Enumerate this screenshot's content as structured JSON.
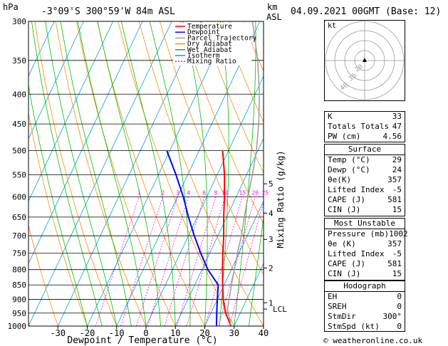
{
  "header": {
    "unit_left": "hPa",
    "location": "-3°09'S 300°59'W 84m ASL",
    "unit_km": "km",
    "unit_asl": "ASL",
    "datetime": "04.09.2021 00GMT (Base: 12)"
  },
  "chart_data": {
    "type": "line",
    "xlabel": "Dewpoint / Temperature (°C)",
    "ylabel": "Mixing Ratio (g/kg)",
    "x_ticks": [
      -30,
      -20,
      -10,
      0,
      10,
      20,
      30,
      40
    ],
    "y_ticks": [
      1000,
      950,
      900,
      850,
      800,
      750,
      700,
      650,
      600,
      550,
      500,
      450,
      400,
      350,
      300
    ],
    "y_tick_labels": [
      "1000",
      "950",
      "900",
      "850",
      "800",
      "750",
      "700",
      "650",
      "600",
      "550",
      "500",
      "450",
      "400",
      "350",
      "300"
    ],
    "xlim": [
      -40,
      40
    ],
    "ylim": [
      1000,
      300
    ],
    "km_ticks": [
      {
        "p": 912,
        "label": "1"
      },
      {
        "p": 795,
        "label": "2"
      },
      {
        "p": 710,
        "label": "3"
      },
      {
        "p": 640,
        "label": "4"
      },
      {
        "p": 570,
        "label": "5"
      }
    ],
    "lcl": {
      "p": 935,
      "label": "LCL"
    },
    "mixing_ratio_labels": [
      "1",
      "2",
      "3",
      "4",
      "6",
      "8",
      "10",
      "15",
      "20",
      "25"
    ],
    "legend": [
      {
        "name": "Temperature",
        "color": "#ff0000"
      },
      {
        "name": "Dewpoint",
        "color": "#0000ff"
      },
      {
        "name": "Parcel Trajectory",
        "color": "#a0a0a0"
      },
      {
        "name": "Dry Adiabat",
        "color": "#ff8c00"
      },
      {
        "name": "Wet Adiabat",
        "color": "#00c000"
      },
      {
        "name": "Isotherm",
        "color": "#00a0e0"
      },
      {
        "name": "Mixing Ratio",
        "color": "#ff00ff"
      }
    ],
    "series": [
      {
        "name": "Temperature",
        "color": "#ff0000",
        "points": [
          [
            1000,
            29
          ],
          [
            950,
            25
          ],
          [
            900,
            22
          ],
          [
            850,
            19.5
          ],
          [
            800,
            17
          ],
          [
            750,
            14.5
          ],
          [
            700,
            12
          ],
          [
            650,
            9
          ],
          [
            600,
            6
          ],
          [
            550,
            2.5
          ],
          [
            500,
            -2
          ]
        ]
      },
      {
        "name": "Dewpoint",
        "color": "#0000ff",
        "points": [
          [
            1000,
            24
          ],
          [
            950,
            22
          ],
          [
            900,
            20
          ],
          [
            850,
            18
          ],
          [
            800,
            12
          ],
          [
            750,
            7
          ],
          [
            700,
            2
          ],
          [
            650,
            -3
          ],
          [
            600,
            -8
          ],
          [
            550,
            -14
          ],
          [
            500,
            -21
          ]
        ]
      },
      {
        "name": "Parcel Trajectory",
        "color": "#a0a0a0",
        "points": [
          [
            1000,
            29
          ],
          [
            935,
            25
          ],
          [
            850,
            22.5
          ],
          [
            800,
            21
          ],
          [
            750,
            19.5
          ],
          [
            700,
            18
          ],
          [
            650,
            16
          ],
          [
            600,
            14
          ],
          [
            550,
            12
          ],
          [
            500,
            9.5
          ],
          [
            450,
            6
          ],
          [
            400,
            1.5
          ],
          [
            350,
            -4.5
          ],
          [
            300,
            -12.5
          ]
        ]
      }
    ]
  },
  "hodograph": {
    "label": "kt",
    "ring_labels": [
      "20",
      "30",
      "40"
    ]
  },
  "indices": [
    {
      "label": "K",
      "value": "33"
    },
    {
      "label": "Totals Totals",
      "value": "47"
    },
    {
      "label": "PW (cm)",
      "value": "4.56"
    }
  ],
  "surface": {
    "title": "Surface",
    "rows": [
      {
        "label": "Temp (°C)",
        "value": "29"
      },
      {
        "label": "Dewp (°C)",
        "value": "24"
      },
      {
        "label": "θe(K)",
        "value": "357"
      },
      {
        "label": "Lifted Index",
        "value": "-5"
      },
      {
        "label": "CAPE (J)",
        "value": "581"
      },
      {
        "label": "CIN (J)",
        "value": "15"
      }
    ]
  },
  "most_unstable": {
    "title": "Most Unstable",
    "rows": [
      {
        "label": "Pressure (mb)",
        "value": "1002"
      },
      {
        "label": "θe (K)",
        "value": "357"
      },
      {
        "label": "Lifted Index",
        "value": "-5"
      },
      {
        "label": "CAPE (J)",
        "value": "581"
      },
      {
        "label": "CIN (J)",
        "value": "15"
      }
    ]
  },
  "hodograph_table": {
    "title": "Hodograph",
    "rows": [
      {
        "label": "EH",
        "value": "0"
      },
      {
        "label": "SREH",
        "value": "0"
      },
      {
        "label": "StmDir",
        "value": "300°"
      },
      {
        "label": "StmSpd (kt)",
        "value": "0"
      }
    ]
  },
  "credit": "© weatheronline.co.uk"
}
